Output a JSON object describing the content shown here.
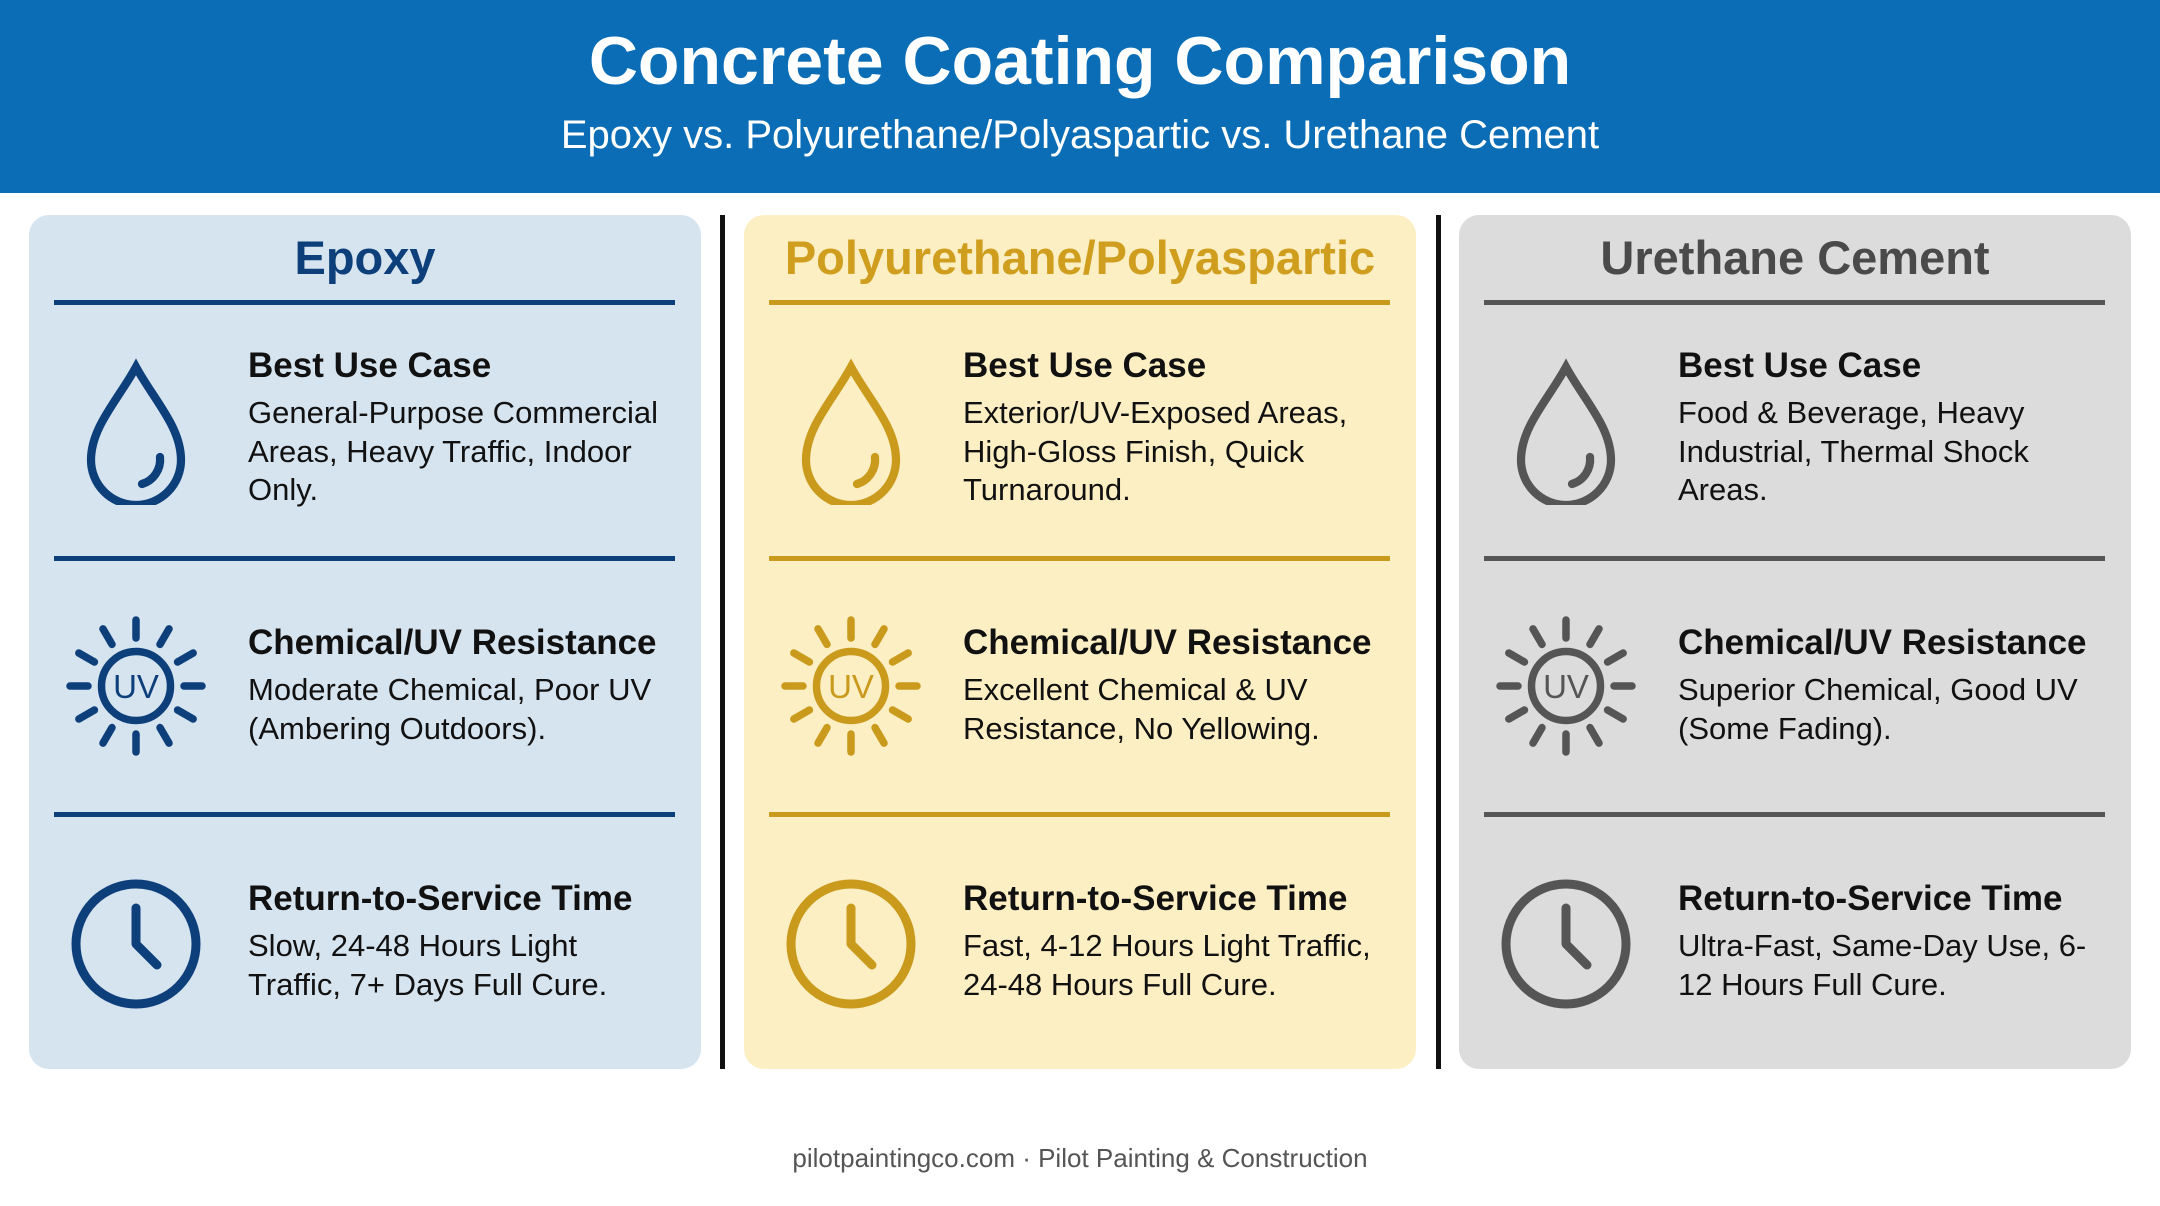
{
  "header": {
    "title": "Concrete Coating Comparison",
    "subtitle": "Epoxy vs. Polyurethane/Polyaspartic vs. Urethane Cement"
  },
  "columns": [
    {
      "title": "Epoxy",
      "rows": [
        {
          "heading": "Best Use Case",
          "text": "General-Purpose Commercial Areas, Heavy Traffic, Indoor Only."
        },
        {
          "heading": "Chemical/UV Resistance",
          "text": "Moderate Chemical, Poor UV (Ambering Outdoors).",
          "icon_text": "UV"
        },
        {
          "heading": "Return-to-Service Time",
          "text": "Slow, 24-48 Hours Light Traffic, 7+ Days Full Cure."
        }
      ]
    },
    {
      "title": "Polyurethane/Polyaspartic",
      "rows": [
        {
          "heading": "Best Use Case",
          "text": "Exterior/UV-Exposed Areas, High-Gloss Finish, Quick Turnaround."
        },
        {
          "heading": "Chemical/UV Resistance",
          "text": "Excellent Chemical & UV Resistance, No Yellowing.",
          "icon_text": "UV"
        },
        {
          "heading": "Return-to-Service Time",
          "text": "Fast, 4-12 Hours Light Traffic, 24-48 Hours Full Cure."
        }
      ]
    },
    {
      "title": "Urethane Cement",
      "rows": [
        {
          "heading": "Best Use Case",
          "text": "Food & Beverage, Heavy Industrial, Thermal Shock Areas."
        },
        {
          "heading": "Chemical/UV Resistance",
          "text": "Superior Chemical, Good UV (Some Fading).",
          "icon_text": "UV"
        },
        {
          "heading": "Return-to-Service Time",
          "text": "Ultra-Fast, Same-Day Use, 6-12 Hours Full Cure."
        }
      ]
    }
  ],
  "footer": "pilotpaintingco.com · Pilot Painting & Construction"
}
